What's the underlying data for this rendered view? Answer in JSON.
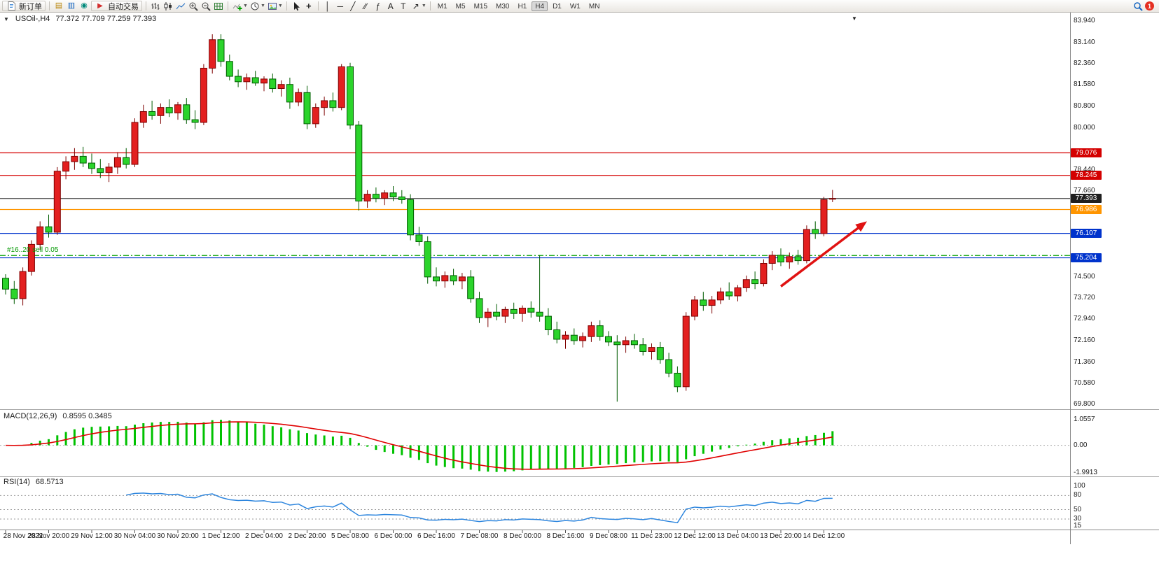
{
  "toolbar": {
    "new_order": "新订单",
    "auto_trading": "自动交易",
    "timeframes": [
      "M1",
      "M5",
      "M15",
      "M30",
      "H1",
      "H4",
      "D1",
      "W1",
      "MN"
    ],
    "active_timeframe": "H4",
    "notification_badge": "1",
    "window_icons": [
      {
        "name": "charts-window-icon",
        "glyph": "▤",
        "color": "#b8860b"
      },
      {
        "name": "market-watch-icon",
        "glyph": "▥",
        "color": "#1565c0"
      },
      {
        "name": "data-window-icon",
        "glyph": "◉",
        "color": "#00897b"
      }
    ],
    "drawing_tools": [
      {
        "name": "vertical-line-tool",
        "glyph": "│"
      },
      {
        "name": "horizontal-line-tool",
        "glyph": "─"
      },
      {
        "name": "trendline-tool",
        "glyph": "╱"
      },
      {
        "name": "equidistant-channel-tool",
        "glyph": "∕∕"
      },
      {
        "name": "fibonacci-tool",
        "glyph": "ƒ"
      },
      {
        "name": "text-tool",
        "glyph": "A"
      },
      {
        "name": "text-label-tool",
        "glyph": "T"
      },
      {
        "name": "arrows-tool",
        "glyph": "↗"
      }
    ]
  },
  "chart": {
    "header": {
      "symbol_period": "USOil-,H4",
      "ohlc": "77.372 77.709 77.259 77.393"
    }
  },
  "chart_data": {
    "type": "candlestick",
    "symbol": "USOil-",
    "timeframe": "H4",
    "price_axis": {
      "top_price": 84.25,
      "bottom_price": 69.62,
      "decimals": 3,
      "ticks": [
        83.94,
        83.14,
        82.36,
        81.58,
        80.8,
        80.0,
        78.44,
        77.66,
        74.5,
        73.72,
        72.94,
        72.16,
        71.36,
        70.58,
        69.8
      ]
    },
    "time_labels": [
      "28 Nov 2022",
      "28 Nov 20:00",
      "29 Nov 12:00",
      "30 Nov 04:00",
      "30 Nov 20:00",
      "1 Dec 12:00",
      "2 Dec 04:00",
      "2 Dec 20:00",
      "5 Dec 08:00",
      "6 Dec 00:00",
      "6 Dec 16:00",
      "7 Dec 08:00",
      "8 Dec 00:00",
      "8 Dec 16:00",
      "9 Dec 08:00",
      "11 Dec 23:00",
      "12 Dec 12:00",
      "13 Dec 04:00",
      "13 Dec 20:00",
      "14 Dec 12:00"
    ],
    "candles": [
      [
        74.45,
        74.6,
        73.85,
        74.05
      ],
      [
        74.05,
        74.35,
        73.5,
        73.7
      ],
      [
        73.7,
        74.85,
        73.45,
        74.7
      ],
      [
        74.7,
        75.85,
        74.55,
        75.7
      ],
      [
        75.7,
        76.55,
        75.5,
        76.35
      ],
      [
        76.35,
        76.8,
        75.95,
        76.15
      ],
      [
        76.15,
        78.55,
        76.05,
        78.4
      ],
      [
        78.4,
        78.95,
        78.1,
        78.75
      ],
      [
        78.75,
        79.25,
        78.45,
        78.95
      ],
      [
        78.95,
        79.3,
        78.55,
        78.7
      ],
      [
        78.7,
        79.05,
        78.3,
        78.5
      ],
      [
        78.5,
        78.85,
        78.15,
        78.35
      ],
      [
        78.35,
        78.7,
        78.0,
        78.55
      ],
      [
        78.55,
        79.1,
        78.3,
        78.9
      ],
      [
        78.9,
        79.25,
        78.5,
        78.65
      ],
      [
        78.65,
        80.35,
        78.55,
        80.2
      ],
      [
        80.2,
        80.85,
        80.0,
        80.6
      ],
      [
        80.6,
        81.0,
        80.3,
        80.45
      ],
      [
        80.45,
        80.9,
        80.15,
        80.75
      ],
      [
        80.75,
        81.05,
        80.4,
        80.55
      ],
      [
        80.55,
        80.95,
        80.3,
        80.85
      ],
      [
        80.85,
        81.1,
        80.15,
        80.3
      ],
      [
        80.3,
        80.65,
        79.95,
        80.2
      ],
      [
        80.2,
        82.35,
        80.1,
        82.2
      ],
      [
        82.2,
        83.45,
        82.0,
        83.25
      ],
      [
        83.25,
        83.45,
        82.25,
        82.45
      ],
      [
        82.45,
        82.7,
        81.75,
        81.9
      ],
      [
        81.9,
        82.15,
        81.5,
        81.7
      ],
      [
        81.7,
        82.0,
        81.4,
        81.85
      ],
      [
        81.85,
        82.1,
        81.55,
        81.65
      ],
      [
        81.65,
        81.9,
        81.35,
        81.8
      ],
      [
        81.8,
        82.0,
        81.3,
        81.45
      ],
      [
        81.45,
        81.75,
        81.15,
        81.6
      ],
      [
        81.6,
        81.85,
        80.7,
        80.95
      ],
      [
        80.95,
        81.45,
        80.8,
        81.3
      ],
      [
        81.3,
        81.55,
        79.95,
        80.15
      ],
      [
        80.15,
        80.9,
        80.0,
        80.75
      ],
      [
        80.75,
        81.15,
        80.45,
        81.0
      ],
      [
        81.0,
        81.3,
        80.6,
        80.75
      ],
      [
        80.75,
        82.35,
        80.65,
        82.25
      ],
      [
        82.25,
        82.4,
        79.95,
        80.1
      ],
      [
        80.1,
        80.25,
        76.95,
        77.3
      ],
      [
        77.3,
        77.7,
        77.05,
        77.55
      ],
      [
        77.55,
        77.8,
        77.25,
        77.4
      ],
      [
        77.4,
        77.7,
        77.15,
        77.6
      ],
      [
        77.6,
        77.85,
        77.3,
        77.45
      ],
      [
        77.45,
        77.7,
        77.2,
        77.35
      ],
      [
        77.35,
        77.55,
        75.85,
        76.05
      ],
      [
        76.05,
        76.35,
        75.65,
        75.8
      ],
      [
        75.8,
        76.0,
        74.25,
        74.5
      ],
      [
        74.5,
        74.85,
        74.15,
        74.35
      ],
      [
        74.35,
        74.7,
        74.1,
        74.55
      ],
      [
        74.55,
        74.8,
        74.2,
        74.35
      ],
      [
        74.35,
        74.65,
        74.05,
        74.5
      ],
      [
        74.5,
        74.75,
        73.55,
        73.7
      ],
      [
        73.7,
        73.95,
        72.8,
        73.0
      ],
      [
        73.0,
        73.35,
        72.65,
        73.2
      ],
      [
        73.2,
        73.5,
        72.9,
        73.05
      ],
      [
        73.05,
        73.4,
        72.8,
        73.3
      ],
      [
        73.3,
        73.55,
        72.95,
        73.15
      ],
      [
        73.15,
        73.45,
        72.85,
        73.35
      ],
      [
        73.35,
        73.6,
        73.0,
        73.2
      ],
      [
        73.2,
        75.3,
        72.85,
        73.05
      ],
      [
        73.05,
        73.35,
        72.35,
        72.55
      ],
      [
        72.55,
        72.85,
        72.05,
        72.2
      ],
      [
        72.2,
        72.5,
        71.85,
        72.35
      ],
      [
        72.35,
        72.6,
        72.0,
        72.15
      ],
      [
        72.15,
        72.45,
        71.9,
        72.3
      ],
      [
        72.3,
        72.85,
        72.1,
        72.7
      ],
      [
        72.7,
        72.9,
        72.15,
        72.3
      ],
      [
        72.3,
        72.5,
        71.95,
        72.1
      ],
      [
        72.1,
        72.35,
        69.9,
        72.0
      ],
      [
        72.0,
        72.3,
        71.7,
        72.15
      ],
      [
        72.15,
        72.4,
        71.85,
        72.0
      ],
      [
        72.0,
        72.25,
        71.6,
        71.75
      ],
      [
        71.75,
        72.05,
        71.45,
        71.9
      ],
      [
        71.9,
        72.1,
        71.3,
        71.45
      ],
      [
        71.45,
        71.7,
        70.8,
        70.95
      ],
      [
        70.95,
        71.2,
        70.25,
        70.45
      ],
      [
        70.45,
        73.2,
        70.3,
        73.05
      ],
      [
        73.05,
        73.8,
        72.9,
        73.65
      ],
      [
        73.65,
        73.95,
        73.25,
        73.45
      ],
      [
        73.45,
        73.8,
        73.15,
        73.65
      ],
      [
        73.65,
        74.1,
        73.5,
        73.95
      ],
      [
        73.95,
        74.3,
        73.65,
        73.8
      ],
      [
        73.8,
        74.2,
        73.6,
        74.1
      ],
      [
        74.1,
        74.55,
        73.95,
        74.4
      ],
      [
        74.4,
        74.7,
        74.05,
        74.25
      ],
      [
        74.25,
        75.15,
        74.15,
        75.0
      ],
      [
        75.0,
        75.45,
        74.75,
        75.3
      ],
      [
        75.3,
        75.55,
        74.9,
        75.05
      ],
      [
        75.05,
        75.4,
        74.8,
        75.25
      ],
      [
        75.25,
        75.5,
        74.95,
        75.1
      ],
      [
        75.1,
        76.4,
        75.0,
        76.25
      ],
      [
        76.25,
        76.55,
        75.9,
        76.1
      ],
      [
        76.1,
        77.45,
        76.0,
        77.35
      ],
      [
        77.372,
        77.709,
        77.259,
        77.393
      ]
    ],
    "candle_colors": {
      "up_fill": "#e32020",
      "up_stroke": "#7e0000",
      "down_fill": "#2bd42b",
      "down_stroke": "#005c00"
    },
    "levels": [
      {
        "name": "resistance-line-1",
        "price": 79.076,
        "label": "79.076",
        "color": "#d40000",
        "line": "solid"
      },
      {
        "name": "resistance-line-2",
        "price": 78.245,
        "label": "78.245",
        "color": "#d40000",
        "line": "solid"
      },
      {
        "name": "current-price-line",
        "price": 77.393,
        "label": "77.393",
        "color": "#404040",
        "badge": "#1f1f1f",
        "line": "solid"
      },
      {
        "name": "support-line-orange",
        "price": 76.986,
        "label": "76.986",
        "color": "#ff9500",
        "line": "solid"
      },
      {
        "name": "support-line-blue-1",
        "price": 76.107,
        "label": "76.107",
        "color": "#0033cc",
        "line": "solid"
      },
      {
        "name": "support-line-blue-2",
        "price": 75.204,
        "label": "75.204",
        "color": "#0033cc",
        "line": "solid"
      },
      {
        "name": "open-position-line",
        "price": 75.29,
        "label": "",
        "color": "#00a000",
        "line": "dashdot",
        "text": "#16..20 sell 0.05"
      }
    ],
    "annotations": [
      {
        "name": "trend-arrow",
        "from_candle": 90,
        "from_price": 74.15,
        "to_candle": 100,
        "to_price": 76.55,
        "color": "#e01212"
      }
    ],
    "indicators": [
      {
        "label": "MACD(12,26,9)",
        "values_label": "0.8595 0.3485",
        "fast": 12,
        "slow": 26,
        "signal": 9,
        "histogram_color": "#00c200",
        "signal_color": "#e00000",
        "scale_labels": {
          "max": "1.0557",
          "zero": "0.00",
          "min": "-1.9913"
        }
      },
      {
        "label": "RSI(14)",
        "values_label": "68.5713",
        "period": 14,
        "line_color": "#2e86de",
        "levels": [
          80,
          50,
          30
        ],
        "scale_labels": [
          [
            100,
            "100"
          ],
          [
            80,
            "80"
          ],
          [
            50,
            "50"
          ],
          [
            30,
            "30"
          ],
          [
            15,
            "15"
          ]
        ]
      }
    ]
  }
}
